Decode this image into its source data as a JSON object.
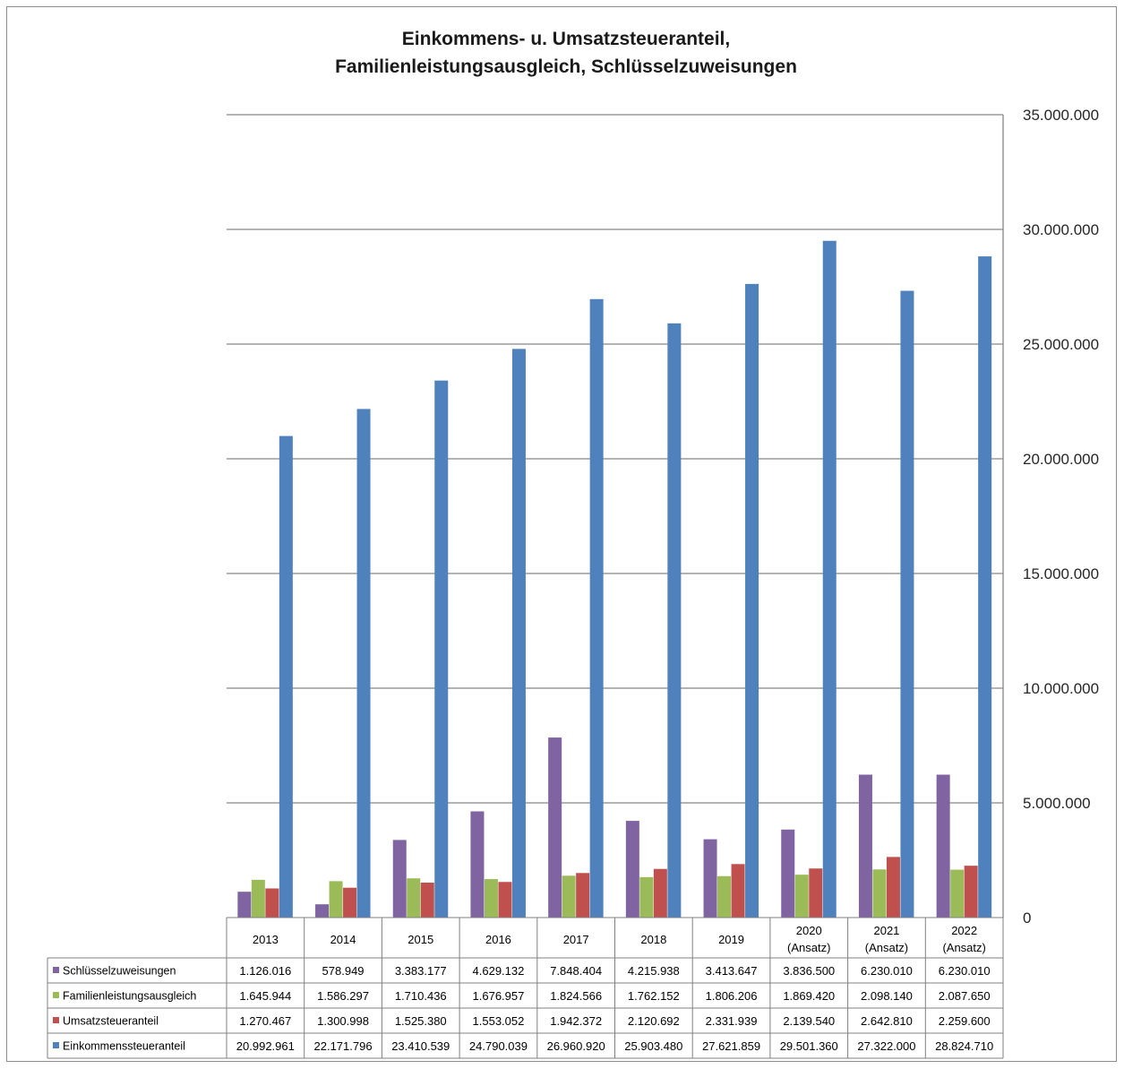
{
  "chart_data": {
    "type": "bar",
    "title": [
      "Einkommens- u. Umsatzsteueranteil,",
      "Familienleistungsausgleich, Schlüsselzuweisungen"
    ],
    "categories": [
      "2013",
      "2014",
      "2015",
      "2016",
      "2017",
      "2018",
      "2019",
      "2020 (Ansatz)",
      "2021 (Ansatz)",
      "2022 (Ansatz)"
    ],
    "category_lines": [
      [
        "2013"
      ],
      [
        "2014"
      ],
      [
        "2015"
      ],
      [
        "2016"
      ],
      [
        "2017"
      ],
      [
        "2018"
      ],
      [
        "2019"
      ],
      [
        "2020",
        "(Ansatz)"
      ],
      [
        "2021",
        "(Ansatz)"
      ],
      [
        "2022",
        "(Ansatz)"
      ]
    ],
    "series": [
      {
        "name": "Schlüsselzuweisungen",
        "color": "#8064a2",
        "values": [
          1126016,
          578949,
          3383177,
          4629132,
          7848404,
          4215938,
          3413647,
          3836500,
          6230010,
          6230010
        ],
        "labels": [
          "1.126.016",
          "578.949",
          "3.383.177",
          "4.629.132",
          "7.848.404",
          "4.215.938",
          "3.413.647",
          "3.836.500",
          "6.230.010",
          "6.230.010"
        ]
      },
      {
        "name": "Familienleistungsausgleich",
        "color": "#9bbb59",
        "values": [
          1645944,
          1586297,
          1710436,
          1676957,
          1824566,
          1762152,
          1806206,
          1869420,
          2098140,
          2087650
        ],
        "labels": [
          "1.645.944",
          "1.586.297",
          "1.710.436",
          "1.676.957",
          "1.824.566",
          "1.762.152",
          "1.806.206",
          "1.869.420",
          "2.098.140",
          "2.087.650"
        ]
      },
      {
        "name": "Umsatzsteueranteil",
        "color": "#c0504d",
        "values": [
          1270467,
          1300998,
          1525380,
          1553052,
          1942372,
          2120692,
          2331939,
          2139540,
          2642810,
          2259600
        ],
        "labels": [
          "1.270.467",
          "1.300.998",
          "1.525.380",
          "1.553.052",
          "1.942.372",
          "2.120.692",
          "2.331.939",
          "2.139.540",
          "2.642.810",
          "2.259.600"
        ]
      },
      {
        "name": "Einkommenssteueranteil",
        "color": "#4f81bd",
        "values": [
          20992961,
          22171796,
          23410539,
          24790039,
          26960920,
          25903480,
          27621859,
          29501360,
          27322000,
          28824710
        ],
        "labels": [
          "20.992.961",
          "22.171.796",
          "23.410.539",
          "24.790.039",
          "26.960.920",
          "25.903.480",
          "27.621.859",
          "29.501.360",
          "27.322.000",
          "28.824.710"
        ]
      }
    ],
    "ylim": [
      0,
      35000000
    ],
    "y_ticks": [
      0,
      5000000,
      10000000,
      15000000,
      20000000,
      25000000,
      30000000,
      35000000
    ],
    "y_tick_labels": [
      "0",
      "5.000.000",
      "10.000.000",
      "15.000.000",
      "20.000.000",
      "25.000.000",
      "30.000.000",
      "35.000.000"
    ],
    "y_axis_side": "right",
    "grid": true,
    "legend": "data-table-below"
  }
}
